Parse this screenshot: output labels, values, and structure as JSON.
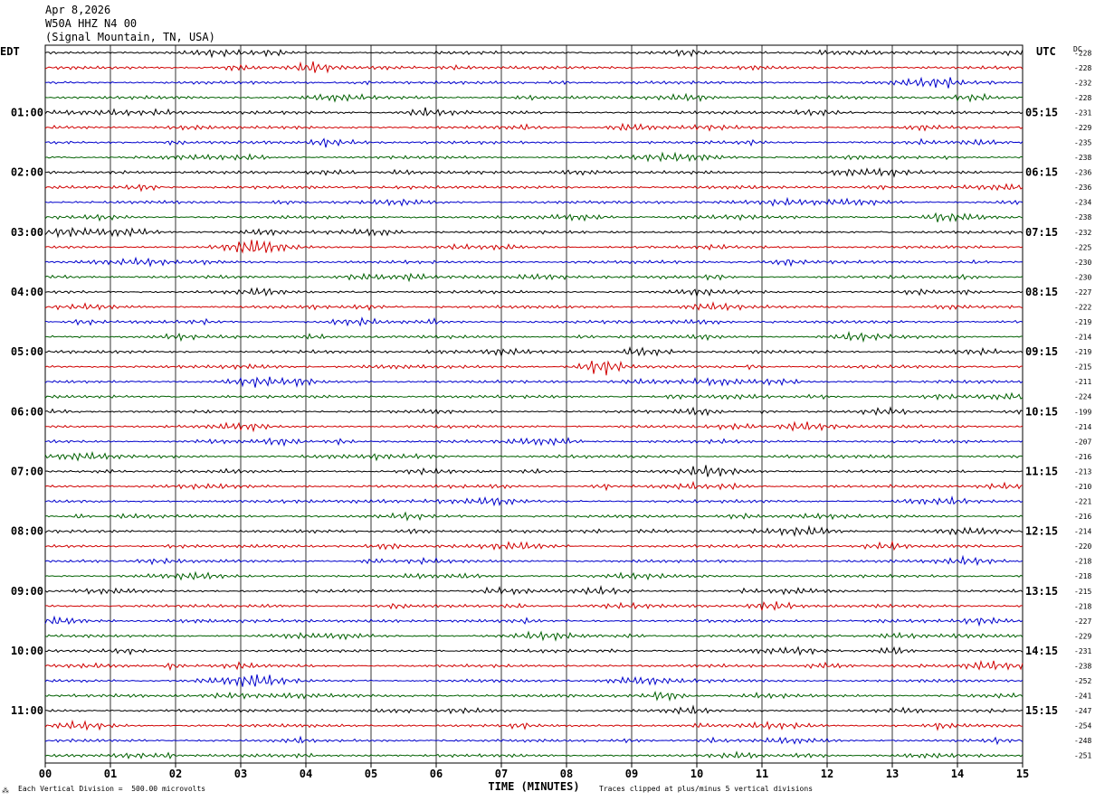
{
  "header": {
    "date": "Apr 8,2026",
    "station": "W50A HHZ N4 00",
    "location": "(Signal Mountain, TN, USA)"
  },
  "left_tz": "EDT",
  "right_tz": "UTC",
  "dc_label": "DC",
  "footer": {
    "scale_note": "Each Vertical Division =  500.00 microvolts",
    "clip_note": "Traces clipped at plus/minus 5 vertical divisions",
    "corner_mark": "⁂"
  },
  "colors": {
    "trace_cycle": [
      "#000000",
      "#d00000",
      "#0000cc",
      "#006000"
    ],
    "grid": "#000000"
  },
  "chart_data": {
    "type": "line",
    "xlabel": "TIME (MINUTES)",
    "x_ticks": [
      "00",
      "01",
      "02",
      "03",
      "04",
      "05",
      "06",
      "07",
      "08",
      "09",
      "10",
      "11",
      "12",
      "13",
      "14",
      "15"
    ],
    "xlim": [
      0,
      15
    ],
    "left_hour_labels": [
      "01:00",
      "02:00",
      "03:00",
      "04:00",
      "05:00",
      "06:00",
      "07:00",
      "08:00",
      "09:00",
      "10:00",
      "11:00"
    ],
    "right_hour_labels": [
      "05:15",
      "06:15",
      "07:15",
      "08:15",
      "09:15",
      "10:15",
      "11:15",
      "12:15",
      "13:15",
      "14:15",
      "15:15"
    ],
    "hour_label_first_row": 4,
    "rows_per_hour": 4,
    "trace_dc_offsets": [
      "-228",
      "-228",
      "-232",
      "-228",
      "-231",
      "-229",
      "-235",
      "-238",
      "-236",
      "-236",
      "-234",
      "-238",
      "-232",
      "-225",
      "-230",
      "-230",
      "-227",
      "-222",
      "-219",
      "-214",
      "-219",
      "-215",
      "-211",
      "-224",
      "-199",
      "-214",
      "-207",
      "-216",
      "-213",
      "-210",
      "-221",
      "-216",
      "-214",
      "-220",
      "-218",
      "-218",
      "-215",
      "-218",
      "-227",
      "-229",
      "-231",
      "-238",
      "-252",
      "-241",
      "-247",
      "-254",
      "-248",
      "-251"
    ]
  }
}
